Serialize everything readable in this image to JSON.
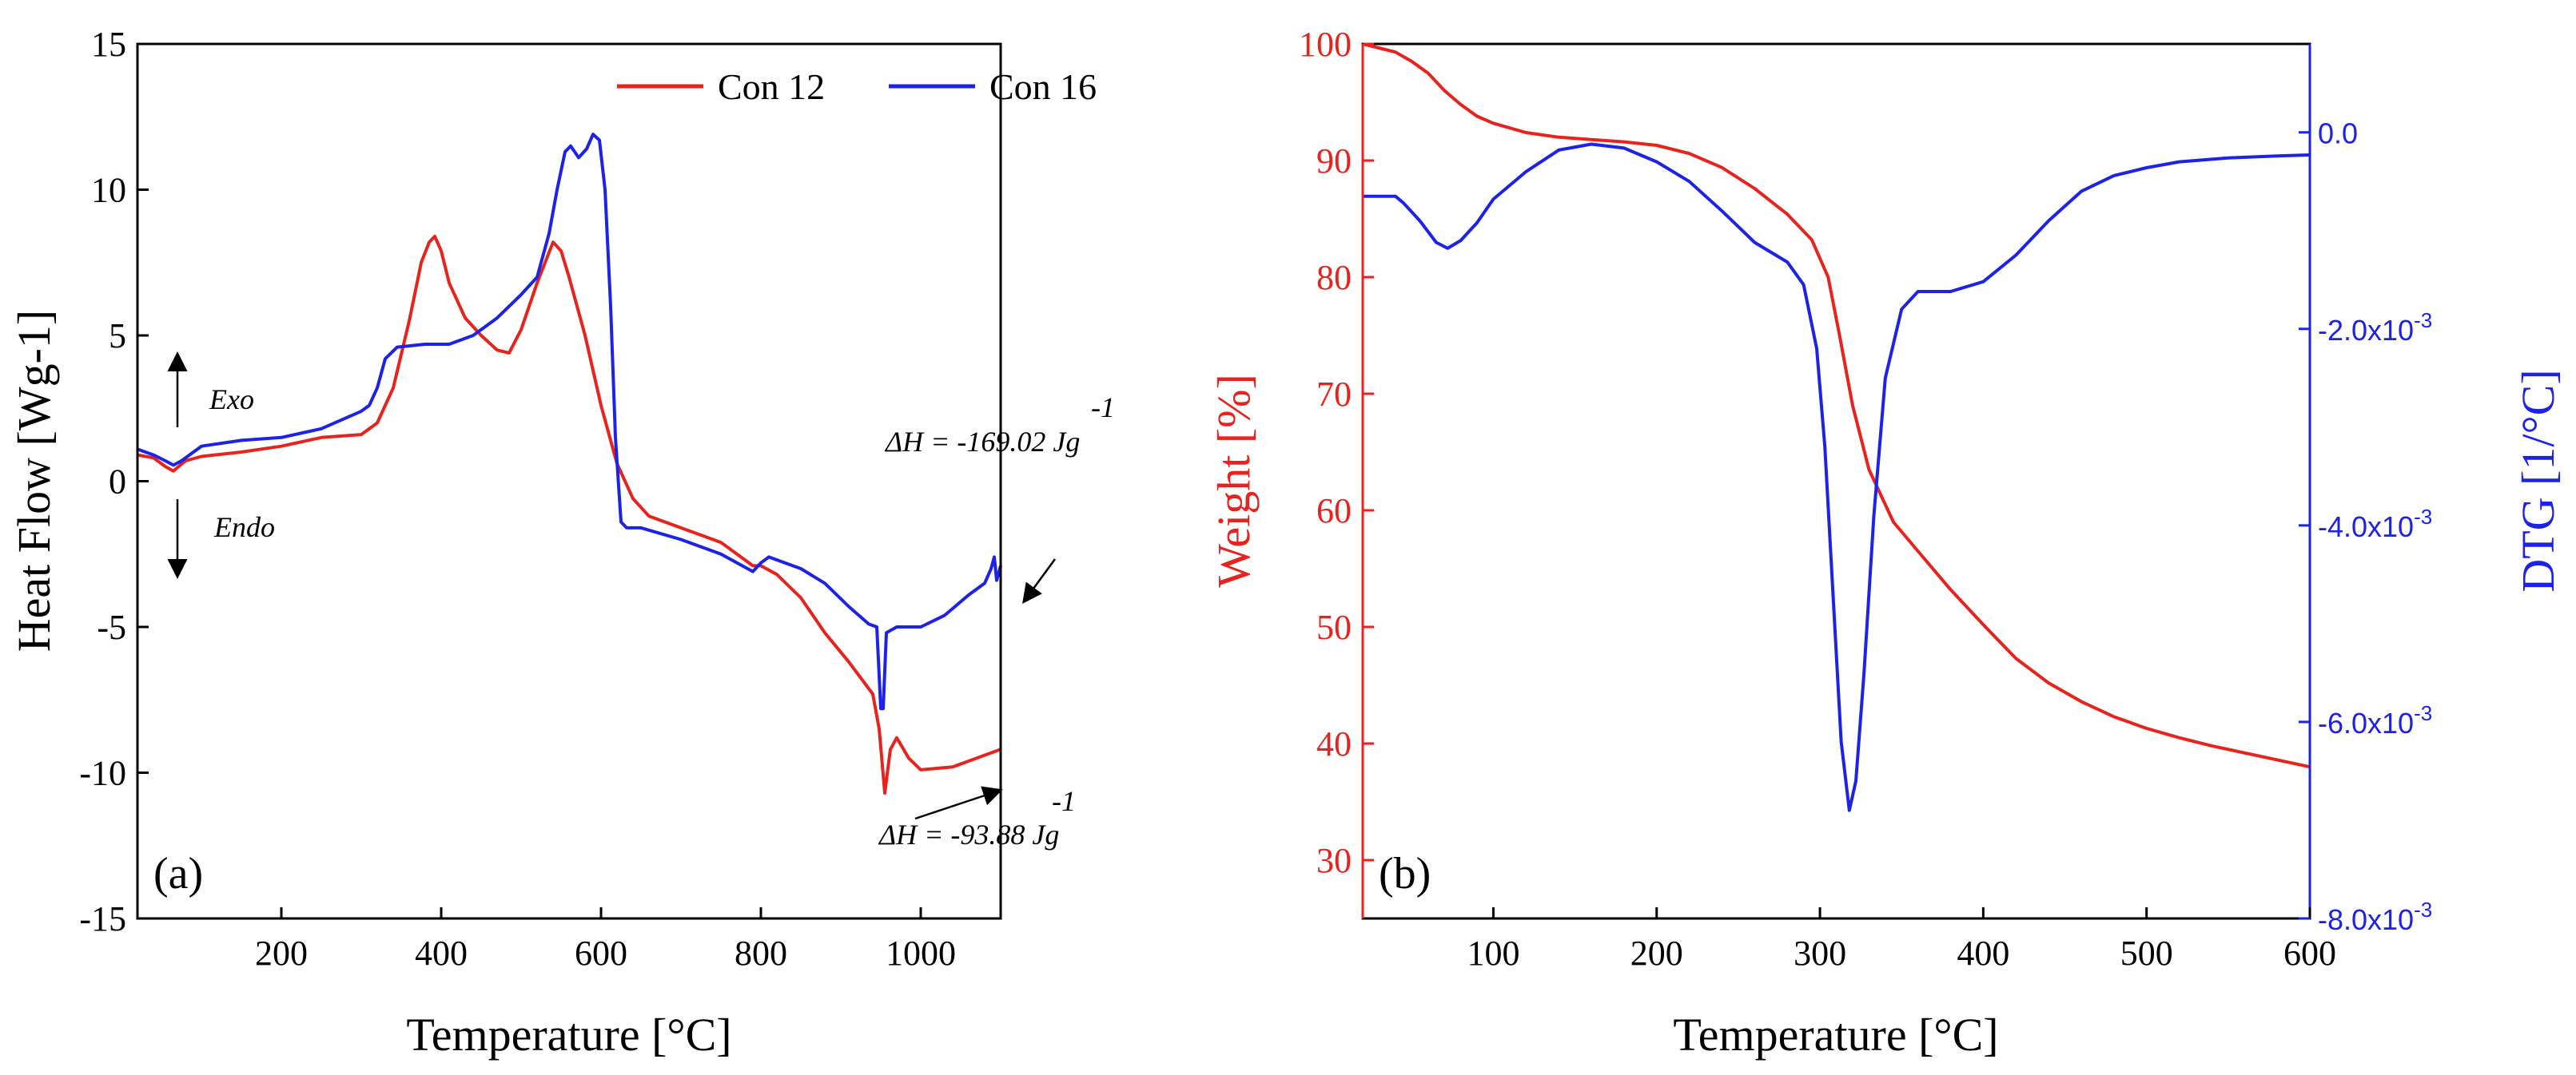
{
  "chart_data": [
    {
      "type": "line",
      "panel_label": "(a)",
      "xlabel": "Temperature [°C]",
      "ylabel": "Heat Flow [Wg-1]",
      "xlim": [
        20,
        1100
      ],
      "ylim": [
        -15,
        15
      ],
      "x_ticks": [
        200,
        400,
        600,
        800,
        1000
      ],
      "y_ticks": [
        15,
        10,
        5,
        0,
        -5,
        -10,
        -15
      ],
      "legend_position": "top-right",
      "series": [
        {
          "name": "Con 12",
          "color": "#e8221c",
          "points": [
            [
              20,
              0.9
            ],
            [
              40,
              0.8
            ],
            [
              55,
              0.5
            ],
            [
              65,
              0.35
            ],
            [
              80,
              0.7
            ],
            [
              100,
              0.85
            ],
            [
              150,
              1.0
            ],
            [
              200,
              1.2
            ],
            [
              250,
              1.5
            ],
            [
              300,
              1.6
            ],
            [
              320,
              2.0
            ],
            [
              340,
              3.2
            ],
            [
              360,
              5.5
            ],
            [
              375,
              7.5
            ],
            [
              385,
              8.2
            ],
            [
              392,
              8.4
            ],
            [
              400,
              7.9
            ],
            [
              410,
              6.8
            ],
            [
              430,
              5.6
            ],
            [
              450,
              5.0
            ],
            [
              470,
              4.5
            ],
            [
              485,
              4.4
            ],
            [
              500,
              5.2
            ],
            [
              520,
              6.8
            ],
            [
              540,
              8.2
            ],
            [
              550,
              7.9
            ],
            [
              560,
              7.0
            ],
            [
              580,
              5.0
            ],
            [
              600,
              2.6
            ],
            [
              620,
              0.6
            ],
            [
              640,
              -0.6
            ],
            [
              660,
              -1.2
            ],
            [
              700,
              -1.6
            ],
            [
              750,
              -2.1
            ],
            [
              790,
              -2.9
            ],
            [
              800,
              -2.9
            ],
            [
              820,
              -3.2
            ],
            [
              850,
              -4.0
            ],
            [
              880,
              -5.2
            ],
            [
              910,
              -6.2
            ],
            [
              940,
              -7.3
            ],
            [
              948,
              -8.5
            ],
            [
              955,
              -10.7
            ],
            [
              962,
              -9.2
            ],
            [
              970,
              -8.8
            ],
            [
              985,
              -9.5
            ],
            [
              1000,
              -9.9
            ],
            [
              1040,
              -9.8
            ],
            [
              1070,
              -9.5
            ],
            [
              1100,
              -9.2
            ]
          ]
        },
        {
          "name": "Con 16",
          "color": "#1c22e8",
          "points": [
            [
              20,
              1.1
            ],
            [
              40,
              0.9
            ],
            [
              55,
              0.7
            ],
            [
              65,
              0.55
            ],
            [
              75,
              0.7
            ],
            [
              100,
              1.2
            ],
            [
              150,
              1.4
            ],
            [
              200,
              1.5
            ],
            [
              250,
              1.8
            ],
            [
              300,
              2.4
            ],
            [
              310,
              2.6
            ],
            [
              320,
              3.2
            ],
            [
              330,
              4.2
            ],
            [
              345,
              4.6
            ],
            [
              380,
              4.7
            ],
            [
              410,
              4.7
            ],
            [
              440,
              5.0
            ],
            [
              470,
              5.6
            ],
            [
              500,
              6.4
            ],
            [
              520,
              7.0
            ],
            [
              535,
              8.5
            ],
            [
              545,
              10.0
            ],
            [
              555,
              11.3
            ],
            [
              562,
              11.5
            ],
            [
              572,
              11.1
            ],
            [
              582,
              11.4
            ],
            [
              590,
              11.9
            ],
            [
              598,
              11.7
            ],
            [
              605,
              10.0
            ],
            [
              612,
              6.0
            ],
            [
              618,
              1.5
            ],
            [
              625,
              -1.4
            ],
            [
              632,
              -1.6
            ],
            [
              650,
              -1.6
            ],
            [
              700,
              -2.0
            ],
            [
              750,
              -2.5
            ],
            [
              790,
              -3.1
            ],
            [
              800,
              -2.8
            ],
            [
              810,
              -2.6
            ],
            [
              830,
              -2.8
            ],
            [
              850,
              -3.0
            ],
            [
              880,
              -3.5
            ],
            [
              910,
              -4.3
            ],
            [
              935,
              -4.9
            ],
            [
              945,
              -5.0
            ],
            [
              950,
              -7.8
            ],
            [
              953,
              -7.8
            ],
            [
              957,
              -5.2
            ],
            [
              970,
              -5.0
            ],
            [
              1000,
              -5.0
            ],
            [
              1030,
              -4.6
            ],
            [
              1060,
              -3.9
            ],
            [
              1080,
              -3.5
            ],
            [
              1088,
              -3.0
            ],
            [
              1092,
              -2.6
            ],
            [
              1095,
              -3.4
            ],
            [
              1100,
              -2.9
            ]
          ]
        }
      ],
      "annotations": [
        {
          "text": "Exo",
          "arrow": "up"
        },
        {
          "text": "Endo",
          "arrow": "down"
        },
        {
          "text": "ΔH = -169.02 Jg",
          "superscript": "-1",
          "target": [
            955,
            -5.0
          ]
        },
        {
          "text": "ΔH = -93.88 Jg",
          "superscript": "-1",
          "target": [
            955,
            -10.7
          ]
        }
      ]
    },
    {
      "type": "line",
      "panel_label": "(b)",
      "xlabel": "Temperature [°C]",
      "ylabel": "Weight [%]",
      "y2label": "DTG [1/°C]",
      "xlim": [
        20,
        600
      ],
      "ylim": [
        25,
        100
      ],
      "y2lim": [
        -0.008,
        0.0009
      ],
      "x_ticks": [
        100,
        200,
        300,
        400,
        500,
        600
      ],
      "y_ticks": [
        100,
        90,
        80,
        70,
        60,
        50,
        40,
        30
      ],
      "y2_ticks": [
        0.0,
        -0.002,
        -0.004,
        -0.006,
        -0.008
      ],
      "y2_tick_labels": [
        "0.0",
        "-2.0x10",
        "-4.0x10",
        "-6.0x10",
        "-8.0x10"
      ],
      "y2_tick_exponent": "-3",
      "series": [
        {
          "name": "Weight",
          "axis": "left",
          "color": "#e8221c",
          "points": [
            [
              20,
              100
            ],
            [
              40,
              99.3
            ],
            [
              50,
              98.5
            ],
            [
              60,
              97.5
            ],
            [
              70,
              96
            ],
            [
              80,
              94.8
            ],
            [
              90,
              93.8
            ],
            [
              100,
              93.2
            ],
            [
              120,
              92.4
            ],
            [
              140,
              92.0
            ],
            [
              160,
              91.8
            ],
            [
              180,
              91.6
            ],
            [
              200,
              91.3
            ],
            [
              220,
              90.6
            ],
            [
              240,
              89.4
            ],
            [
              260,
              87.6
            ],
            [
              280,
              85.4
            ],
            [
              295,
              83.2
            ],
            [
              305,
              80
            ],
            [
              312,
              75
            ],
            [
              320,
              69
            ],
            [
              330,
              63.5
            ],
            [
              345,
              59
            ],
            [
              360,
              56.5
            ],
            [
              380,
              53.2
            ],
            [
              400,
              50.2
            ],
            [
              420,
              47.3
            ],
            [
              440,
              45.2
            ],
            [
              460,
              43.6
            ],
            [
              480,
              42.3
            ],
            [
              500,
              41.3
            ],
            [
              520,
              40.5
            ],
            [
              540,
              39.8
            ],
            [
              560,
              39.2
            ],
            [
              580,
              38.6
            ],
            [
              600,
              38.0
            ]
          ]
        },
        {
          "name": "DTG",
          "axis": "right",
          "color": "#1c22e8",
          "points": [
            [
              20,
              -0.00065
            ],
            [
              40,
              -0.00065
            ],
            [
              45,
              -0.00072
            ],
            [
              55,
              -0.0009
            ],
            [
              65,
              -0.00112
            ],
            [
              72,
              -0.00118
            ],
            [
              80,
              -0.0011
            ],
            [
              90,
              -0.00092
            ],
            [
              100,
              -0.00068
            ],
            [
              120,
              -0.0004
            ],
            [
              140,
              -0.00018
            ],
            [
              160,
              -0.00012
            ],
            [
              180,
              -0.00016
            ],
            [
              200,
              -0.0003
            ],
            [
              220,
              -0.0005
            ],
            [
              240,
              -0.0008
            ],
            [
              260,
              -0.00112
            ],
            [
              280,
              -0.00132
            ],
            [
              290,
              -0.00155
            ],
            [
              298,
              -0.0022
            ],
            [
              303,
              -0.0032
            ],
            [
              308,
              -0.0047
            ],
            [
              313,
              -0.0062
            ],
            [
              318,
              -0.0069
            ],
            [
              322,
              -0.0066
            ],
            [
              327,
              -0.0055
            ],
            [
              333,
              -0.0039
            ],
            [
              340,
              -0.0025
            ],
            [
              350,
              -0.0018
            ],
            [
              360,
              -0.00162
            ],
            [
              380,
              -0.00162
            ],
            [
              400,
              -0.00152
            ],
            [
              420,
              -0.00125
            ],
            [
              440,
              -0.0009
            ],
            [
              460,
              -0.0006
            ],
            [
              480,
              -0.00044
            ],
            [
              500,
              -0.00036
            ],
            [
              520,
              -0.0003
            ],
            [
              550,
              -0.00026
            ],
            [
              580,
              -0.00024
            ],
            [
              600,
              -0.00023
            ]
          ]
        }
      ]
    }
  ]
}
